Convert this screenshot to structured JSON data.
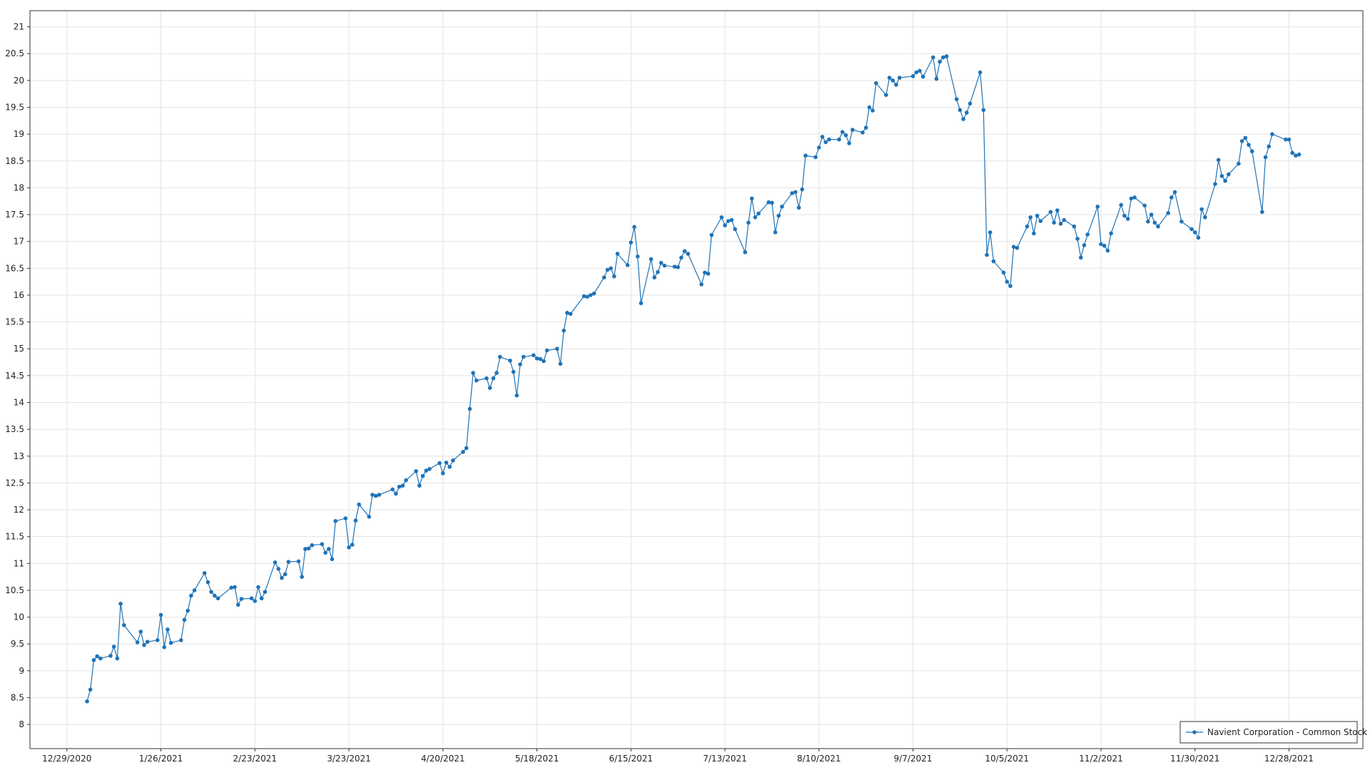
{
  "chart_data": {
    "type": "line",
    "x": [
      "2021-01-04",
      "2021-01-05",
      "2021-01-06",
      "2021-01-07",
      "2021-01-08",
      "2021-01-11",
      "2021-01-12",
      "2021-01-13",
      "2021-01-14",
      "2021-01-15",
      "2021-01-19",
      "2021-01-20",
      "2021-01-21",
      "2021-01-22",
      "2021-01-25",
      "2021-01-26",
      "2021-01-27",
      "2021-01-28",
      "2021-01-29",
      "2021-02-01",
      "2021-02-02",
      "2021-02-03",
      "2021-02-04",
      "2021-02-05",
      "2021-02-08",
      "2021-02-09",
      "2021-02-10",
      "2021-02-11",
      "2021-02-12",
      "2021-02-16",
      "2021-02-17",
      "2021-02-18",
      "2021-02-19",
      "2021-02-22",
      "2021-02-23",
      "2021-02-24",
      "2021-02-25",
      "2021-02-26",
      "2021-03-01",
      "2021-03-02",
      "2021-03-03",
      "2021-03-04",
      "2021-03-05",
      "2021-03-08",
      "2021-03-09",
      "2021-03-10",
      "2021-03-11",
      "2021-03-12",
      "2021-03-15",
      "2021-03-16",
      "2021-03-17",
      "2021-03-18",
      "2021-03-19",
      "2021-03-22",
      "2021-03-23",
      "2021-03-24",
      "2021-03-25",
      "2021-03-26",
      "2021-03-29",
      "2021-03-30",
      "2021-03-31",
      "2021-04-01",
      "2021-04-05",
      "2021-04-06",
      "2021-04-07",
      "2021-04-08",
      "2021-04-09",
      "2021-04-12",
      "2021-04-13",
      "2021-04-14",
      "2021-04-15",
      "2021-04-16",
      "2021-04-19",
      "2021-04-20",
      "2021-04-21",
      "2021-04-22",
      "2021-04-23",
      "2021-04-26",
      "2021-04-27",
      "2021-04-28",
      "2021-04-29",
      "2021-04-30",
      "2021-05-03",
      "2021-05-04",
      "2021-05-05",
      "2021-05-06",
      "2021-05-07",
      "2021-05-10",
      "2021-05-11",
      "2021-05-12",
      "2021-05-13",
      "2021-05-14",
      "2021-05-17",
      "2021-05-18",
      "2021-05-19",
      "2021-05-20",
      "2021-05-21",
      "2021-05-24",
      "2021-05-25",
      "2021-05-26",
      "2021-05-27",
      "2021-05-28",
      "2021-06-01",
      "2021-06-02",
      "2021-06-03",
      "2021-06-04",
      "2021-06-07",
      "2021-06-08",
      "2021-06-09",
      "2021-06-10",
      "2021-06-11",
      "2021-06-14",
      "2021-06-15",
      "2021-06-16",
      "2021-06-17",
      "2021-06-18",
      "2021-06-21",
      "2021-06-22",
      "2021-06-23",
      "2021-06-24",
      "2021-06-25",
      "2021-06-28",
      "2021-06-29",
      "2021-06-30",
      "2021-07-01",
      "2021-07-02",
      "2021-07-06",
      "2021-07-07",
      "2021-07-08",
      "2021-07-09",
      "2021-07-12",
      "2021-07-13",
      "2021-07-14",
      "2021-07-15",
      "2021-07-16",
      "2021-07-19",
      "2021-07-20",
      "2021-07-21",
      "2021-07-22",
      "2021-07-23",
      "2021-07-26",
      "2021-07-27",
      "2021-07-28",
      "2021-07-29",
      "2021-07-30",
      "2021-08-02",
      "2021-08-03",
      "2021-08-04",
      "2021-08-05",
      "2021-08-06",
      "2021-08-09",
      "2021-08-10",
      "2021-08-11",
      "2021-08-12",
      "2021-08-13",
      "2021-08-16",
      "2021-08-17",
      "2021-08-18",
      "2021-08-19",
      "2021-08-20",
      "2021-08-23",
      "2021-08-24",
      "2021-08-25",
      "2021-08-26",
      "2021-08-27",
      "2021-08-30",
      "2021-08-31",
      "2021-09-01",
      "2021-09-02",
      "2021-09-03",
      "2021-09-07",
      "2021-09-08",
      "2021-09-09",
      "2021-09-10",
      "2021-09-13",
      "2021-09-14",
      "2021-09-15",
      "2021-09-16",
      "2021-09-17",
      "2021-09-20",
      "2021-09-21",
      "2021-09-22",
      "2021-09-23",
      "2021-09-24",
      "2021-09-27",
      "2021-09-28",
      "2021-09-29",
      "2021-09-30",
      "2021-10-01",
      "2021-10-04",
      "2021-10-05",
      "2021-10-06",
      "2021-10-07",
      "2021-10-08",
      "2021-10-11",
      "2021-10-12",
      "2021-10-13",
      "2021-10-14",
      "2021-10-15",
      "2021-10-18",
      "2021-10-19",
      "2021-10-20",
      "2021-10-21",
      "2021-10-22",
      "2021-10-25",
      "2021-10-26",
      "2021-10-27",
      "2021-10-28",
      "2021-10-29",
      "2021-11-01",
      "2021-11-02",
      "2021-11-03",
      "2021-11-04",
      "2021-11-05",
      "2021-11-08",
      "2021-11-09",
      "2021-11-10",
      "2021-11-11",
      "2021-11-12",
      "2021-11-15",
      "2021-11-16",
      "2021-11-17",
      "2021-11-18",
      "2021-11-19",
      "2021-11-22",
      "2021-11-23",
      "2021-11-24",
      "2021-11-26",
      "2021-11-29",
      "2021-11-30",
      "2021-12-01",
      "2021-12-02",
      "2021-12-03",
      "2021-12-06",
      "2021-12-07",
      "2021-12-08",
      "2021-12-09",
      "2021-12-10",
      "2021-12-13",
      "2021-12-14",
      "2021-12-15",
      "2021-12-16",
      "2021-12-17",
      "2021-12-20",
      "2021-12-21",
      "2021-12-22",
      "2021-12-23",
      "2021-12-27",
      "2021-12-28",
      "2021-12-29",
      "2021-12-30",
      "2021-12-31"
    ],
    "series": [
      {
        "name": "Navient Corporation - Common Stock",
        "color": "#1f73b7",
        "values": [
          8.43,
          8.65,
          9.2,
          9.27,
          9.23,
          9.28,
          9.45,
          9.23,
          10.25,
          9.85,
          9.53,
          9.73,
          9.48,
          9.54,
          9.57,
          10.04,
          9.44,
          9.77,
          9.52,
          9.57,
          9.95,
          10.12,
          10.4,
          10.5,
          10.82,
          10.65,
          10.47,
          10.4,
          10.35,
          10.55,
          10.56,
          10.23,
          10.34,
          10.35,
          10.3,
          10.56,
          10.35,
          10.47,
          11.02,
          10.9,
          10.73,
          10.8,
          11.03,
          11.04,
          10.75,
          11.27,
          11.28,
          11.34,
          11.36,
          11.2,
          11.27,
          11.08,
          11.79,
          11.84,
          11.3,
          11.35,
          11.8,
          12.1,
          11.87,
          12.28,
          12.26,
          12.28,
          12.38,
          12.3,
          12.43,
          12.45,
          12.55,
          12.72,
          12.45,
          12.63,
          12.73,
          12.76,
          12.87,
          12.68,
          12.88,
          12.8,
          12.92,
          13.08,
          13.15,
          13.88,
          14.55,
          14.41,
          14.45,
          14.27,
          14.45,
          14.55,
          14.85,
          14.78,
          14.57,
          14.13,
          14.71,
          14.85,
          14.88,
          14.82,
          14.81,
          14.77,
          14.97,
          15.0,
          14.72,
          15.34,
          15.67,
          15.65,
          15.98,
          15.97,
          16.0,
          16.03,
          16.33,
          16.47,
          16.5,
          16.35,
          16.77,
          16.56,
          16.98,
          17.27,
          16.72,
          15.85,
          16.67,
          16.33,
          16.43,
          16.6,
          16.55,
          16.53,
          16.52,
          16.7,
          16.82,
          16.77,
          16.2,
          16.42,
          16.4,
          17.12,
          17.45,
          17.3,
          17.38,
          17.4,
          17.23,
          16.8,
          17.35,
          17.8,
          17.45,
          17.52,
          17.73,
          17.72,
          17.17,
          17.48,
          17.65,
          17.9,
          17.92,
          17.63,
          17.97,
          18.6,
          18.57,
          18.75,
          18.95,
          18.85,
          18.9,
          18.9,
          19.04,
          18.98,
          18.83,
          19.08,
          19.03,
          19.12,
          19.5,
          19.44,
          19.95,
          19.73,
          20.05,
          20.0,
          19.92,
          20.05,
          20.08,
          20.15,
          20.18,
          20.07,
          20.43,
          20.03,
          20.35,
          20.43,
          20.45,
          19.65,
          19.45,
          19.28,
          19.4,
          19.57,
          20.15,
          19.45,
          16.75,
          17.17,
          16.63,
          16.42,
          16.25,
          16.17,
          16.9,
          16.88,
          17.28,
          17.45,
          17.15,
          17.48,
          17.38,
          17.55,
          17.35,
          17.58,
          17.33,
          17.4,
          17.28,
          17.05,
          16.7,
          16.93,
          17.13,
          17.65,
          16.95,
          16.92,
          16.83,
          17.15,
          17.68,
          17.48,
          17.42,
          17.8,
          17.82,
          17.67,
          17.37,
          17.5,
          17.35,
          17.28,
          17.53,
          17.82,
          17.92,
          17.37,
          17.23,
          17.17,
          17.07,
          17.6,
          17.45,
          18.07,
          18.52,
          18.22,
          18.13,
          18.25,
          18.45,
          18.87,
          18.93,
          18.8,
          18.68,
          17.55,
          18.57,
          18.77,
          19.0,
          18.9,
          18.9,
          18.65,
          18.6,
          18.62
        ]
      }
    ],
    "xlim": [
      "2020-12-18",
      "2022-01-19"
    ],
    "xticks": [
      {
        "value": "2020-12-29",
        "label": "12/29/2020"
      },
      {
        "value": "2021-01-26",
        "label": "1/26/2021"
      },
      {
        "value": "2021-02-23",
        "label": "2/23/2021"
      },
      {
        "value": "2021-03-23",
        "label": "3/23/2021"
      },
      {
        "value": "2021-04-20",
        "label": "4/20/2021"
      },
      {
        "value": "2021-05-18",
        "label": "5/18/2021"
      },
      {
        "value": "2021-06-15",
        "label": "6/15/2021"
      },
      {
        "value": "2021-07-13",
        "label": "7/13/2021"
      },
      {
        "value": "2021-08-10",
        "label": "8/10/2021"
      },
      {
        "value": "2021-09-07",
        "label": "9/7/2021"
      },
      {
        "value": "2021-10-05",
        "label": "10/5/2021"
      },
      {
        "value": "2021-11-02",
        "label": "11/2/2021"
      },
      {
        "value": "2021-11-30",
        "label": "11/30/2021"
      },
      {
        "value": "2021-12-28",
        "label": "12/28/2021"
      }
    ],
    "ylim": [
      7.55,
      21.3
    ],
    "yticks": [
      8,
      8.5,
      9,
      9.5,
      10,
      10.5,
      11,
      11.5,
      12,
      12.5,
      13,
      13.5,
      14,
      14.5,
      15,
      15.5,
      16,
      16.5,
      17,
      17.5,
      18,
      18.5,
      19,
      19.5,
      20,
      20.5,
      21
    ],
    "grid": true,
    "legend": "lower right"
  }
}
